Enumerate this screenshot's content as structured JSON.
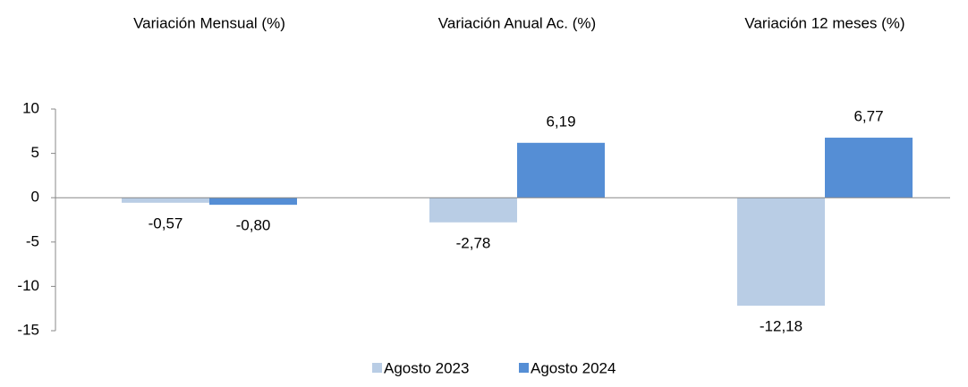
{
  "chart_data": {
    "type": "bar",
    "categories": [
      "Variación Mensual (%)",
      "Variación Anual Ac. (%)",
      "Variación 12 meses (%)"
    ],
    "series": [
      {
        "name": "Agosto 2023",
        "color": "#b9cde5",
        "values": [
          -0.57,
          -2.78,
          -12.18
        ],
        "value_labels": [
          "-0,57",
          "-2,78",
          "-12,18"
        ]
      },
      {
        "name": "Agosto 2024",
        "color": "#558ed5",
        "values": [
          -0.8,
          6.19,
          6.77
        ],
        "value_labels": [
          "-0,80",
          "6,19",
          "6,77"
        ]
      }
    ],
    "ylim": [
      -15,
      10
    ],
    "yticks": [
      -15,
      -10,
      -5,
      0,
      5,
      10
    ],
    "legend": "bottom"
  }
}
